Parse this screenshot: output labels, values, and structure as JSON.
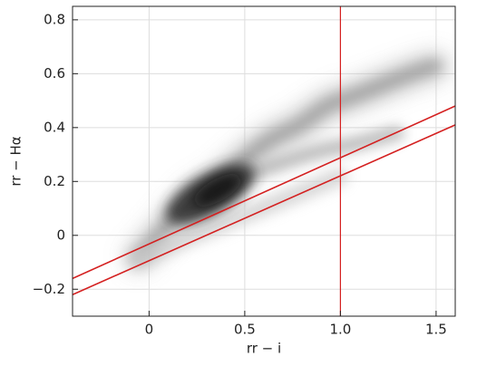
{
  "chart_data": {
    "type": "line",
    "x_label": "rr − i",
    "y_label": "rr − Hα",
    "xlim": [
      -0.4,
      1.6
    ],
    "ylim": [
      -0.3,
      0.85
    ],
    "xticks": [
      0,
      0.5,
      {
        "value": 1.0,
        "label": "1.0"
      },
      1.5
    ],
    "yticks": [
      {
        "value": -0.2,
        "label": "−0.2"
      },
      0,
      0.2,
      0.4,
      0.6,
      0.8
    ],
    "grid": true,
    "lines": [
      {
        "color": "#d42020",
        "x": [
          -0.4,
          1.6
        ],
        "y": [
          -0.16,
          0.48
        ]
      },
      {
        "color": "#d42020",
        "x": [
          -0.4,
          1.6
        ],
        "y": [
          -0.22,
          0.41
        ]
      }
    ],
    "vline": {
      "x": 1.0,
      "color": "#d42020"
    }
  }
}
